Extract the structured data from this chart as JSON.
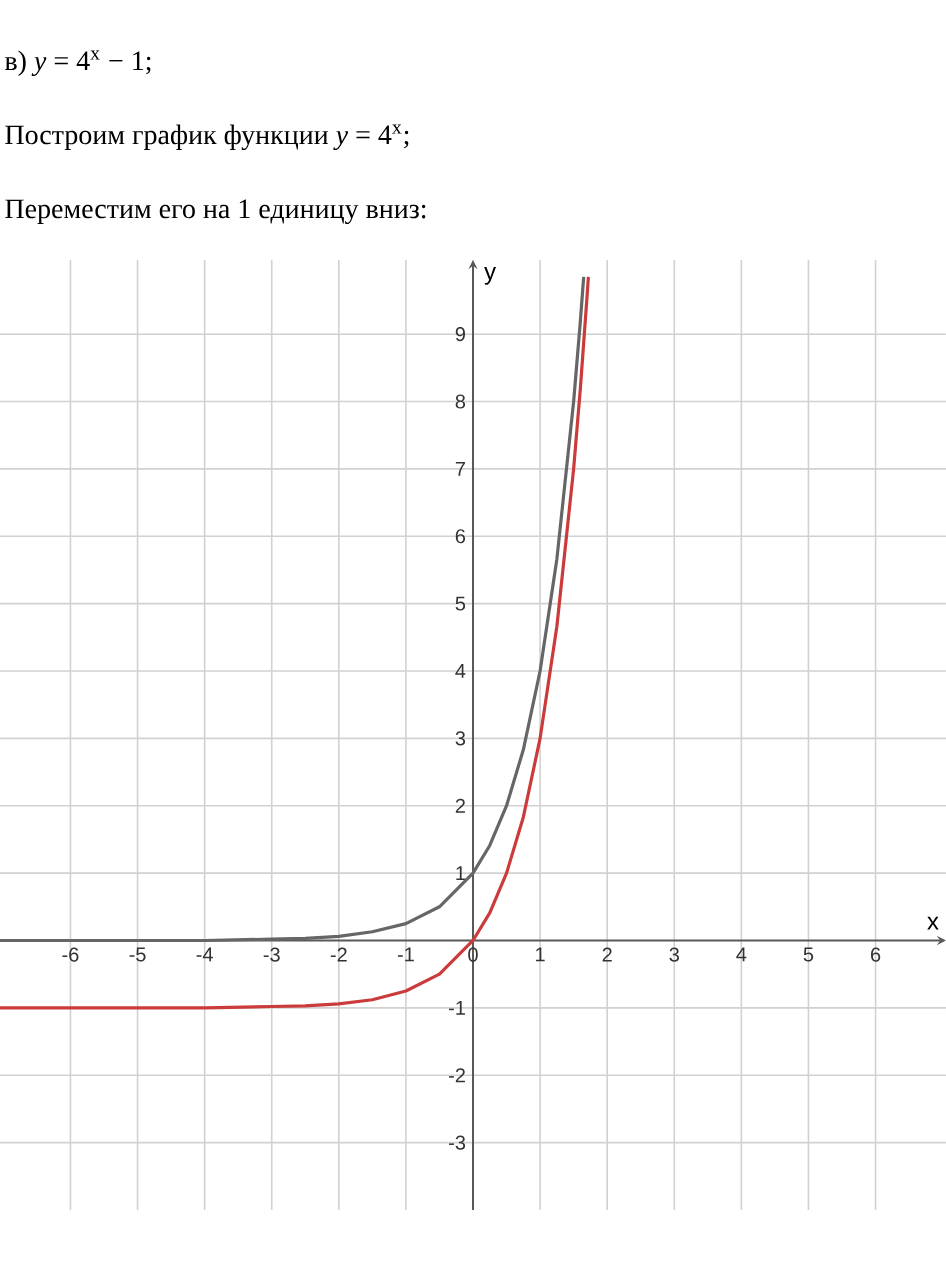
{
  "chart_data": {
    "type": "line",
    "title": "в) *y* = 4$^{x}$ − 1;",
    "subtitle": "Построим график функции *y* = 4$^{x}$;",
    "annotations": [
      "Переместим его на 1 единицу вниз:"
    ],
    "xlabel": "x",
    "ylabel": "y",
    "xlim": [
      -7.05,
      7.05
    ],
    "ylim": [
      -4.0,
      10.1
    ],
    "xticks": [
      -6,
      -5,
      -4,
      -3,
      -2,
      -1,
      0,
      1,
      2,
      3,
      4,
      5,
      6
    ],
    "yticks": [
      -3,
      -2,
      -1,
      1,
      2,
      3,
      4,
      5,
      6,
      7,
      8,
      9
    ],
    "grid": true,
    "series": [
      {
        "color": "#666666",
        "x": [
          -7.05,
          -5,
          -4,
          -3,
          -2.5,
          -2,
          -1.5,
          -1,
          -0.5,
          0,
          0.25,
          0.5,
          0.75,
          1,
          1.25,
          1.5,
          1.6,
          1.65
        ],
        "values": [
          0,
          0,
          0,
          0.02,
          0.03,
          0.06,
          0.13,
          0.25,
          0.5,
          1,
          1.41,
          2,
          2.83,
          4,
          5.66,
          8,
          9.19,
          9.85
        ]
      },
      {
        "color": "#cc3b3b",
        "x": [
          -7.05,
          -5,
          -4,
          -3,
          -2.5,
          -2,
          -1.5,
          -1,
          -0.5,
          0,
          0.25,
          0.5,
          0.75,
          1,
          1.25,
          1.5,
          1.6,
          1.7,
          1.72
        ],
        "values": [
          -1,
          -1,
          -1,
          -0.98,
          -0.97,
          -0.94,
          -0.88,
          -0.75,
          -0.5,
          0,
          0.41,
          1,
          1.83,
          3,
          4.66,
          7,
          8.19,
          9.56,
          9.85
        ]
      }
    ]
  }
}
